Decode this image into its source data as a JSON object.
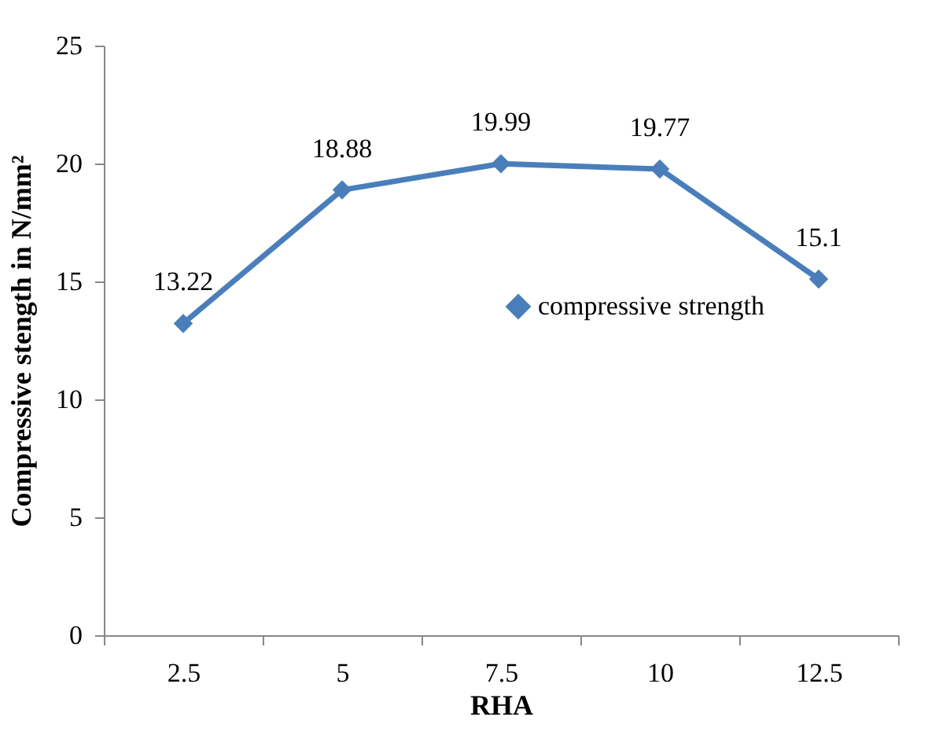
{
  "chart_data": {
    "type": "line",
    "xlabel": "RHA",
    "ylabel": "Compressive stength in N/mm²",
    "categories": [
      "2.5",
      "5",
      "7.5",
      "10",
      "12.5"
    ],
    "series": [
      {
        "name": "compressive strength",
        "color": "#4a7ebb",
        "values": [
          13.22,
          18.88,
          19.99,
          19.77,
          15.1
        ]
      }
    ],
    "ylim": [
      0,
      25
    ],
    "yticks": [
      0,
      5,
      10,
      15,
      20,
      25
    ],
    "grid": false,
    "legend": "right",
    "marker": "diamond",
    "line_style": "solid",
    "data_labels": true
  }
}
